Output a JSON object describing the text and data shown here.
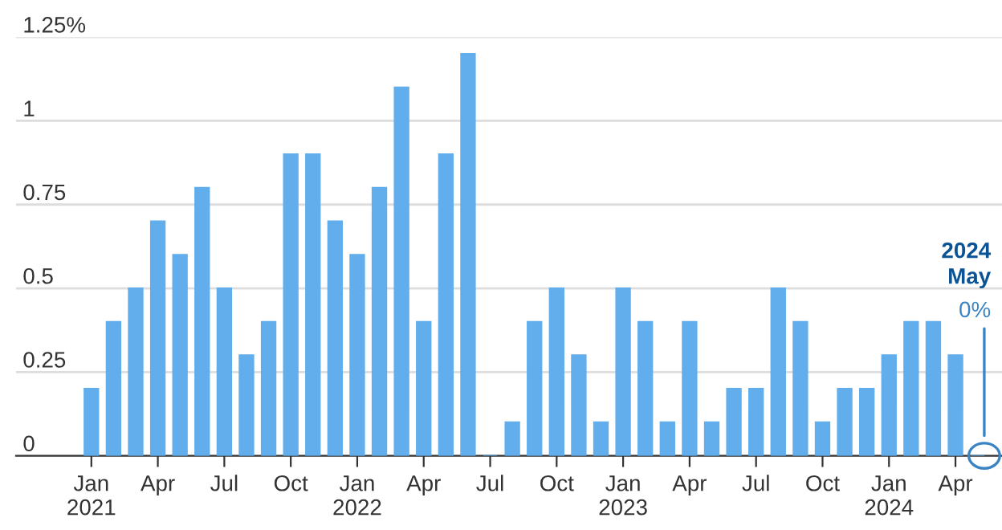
{
  "chart_data": {
    "type": "bar",
    "color": "#62aeec",
    "categories": [
      "Jan\n2021",
      null,
      null,
      "Apr",
      null,
      null,
      "Jul",
      null,
      null,
      "Oct",
      null,
      null,
      "Jan\n2022",
      null,
      null,
      "Apr",
      null,
      null,
      "Jul",
      null,
      null,
      "Oct",
      null,
      null,
      "Jan\n2023",
      null,
      null,
      "Apr",
      null,
      null,
      "Jul",
      null,
      null,
      "Oct",
      null,
      null,
      "Jan\n2024",
      null,
      null,
      "Apr",
      null
    ],
    "values": [
      0.2,
      0.4,
      0.5,
      0.7,
      0.6,
      0.8,
      0.5,
      0.3,
      0.4,
      0.9,
      0.9,
      0.7,
      0.6,
      0.8,
      1.1,
      0.4,
      0.9,
      1.2,
      0,
      0.1,
      0.4,
      0.5,
      0.3,
      0.1,
      0.5,
      0.4,
      0.1,
      0.4,
      0.1,
      0.2,
      0.2,
      0.5,
      0.4,
      0.1,
      0.2,
      0.2,
      0.3,
      0.4,
      0.4,
      0.3,
      0
    ],
    "ylim": [
      0,
      1.25
    ],
    "yticks": [
      0,
      0.25,
      0.5,
      0.75,
      1,
      {
        "value": 1.25,
        "label": "1.25%"
      }
    ],
    "grid": "y",
    "annotations": [
      "2024\nMay",
      "0%"
    ]
  }
}
